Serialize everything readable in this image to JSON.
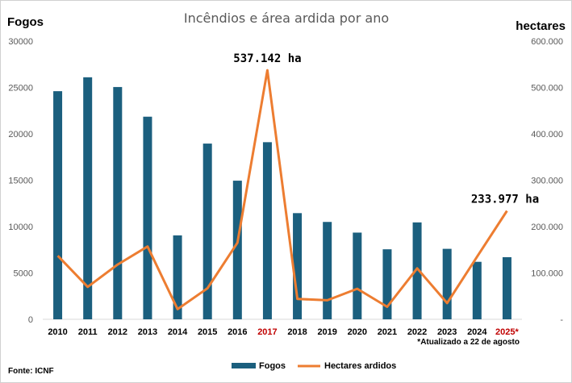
{
  "chart_data": {
    "type": "bar+line",
    "title": "Incêndios e área ardida por ano",
    "y_left_label": "Fogos",
    "y_right_label": "hectares",
    "y_left_ticks": [
      "0",
      "5000",
      "10000",
      "15000",
      "20000",
      "25000",
      "30000"
    ],
    "y_right_ticks": [
      "-",
      "100.000",
      "200.000",
      "300.000",
      "400.000",
      "500.000",
      "600.000"
    ],
    "ylim_left": [
      0,
      30000
    ],
    "ylim_right": [
      0,
      600000
    ],
    "categories": [
      "2010",
      "2011",
      "2012",
      "2013",
      "2014",
      "2015",
      "2016",
      "2017",
      "2018",
      "2019",
      "2020",
      "2021",
      "2022",
      "2023",
      "2024",
      "2025*"
    ],
    "highlight_categories": [
      "2017",
      "2025*"
    ],
    "series": [
      {
        "name": "Fogos",
        "type": "bar",
        "axis": "left",
        "color": "#1b5f7e",
        "values": [
          24600,
          26100,
          25050,
          21850,
          9050,
          18950,
          14950,
          19100,
          11450,
          10500,
          9350,
          7550,
          10450,
          7600,
          6200,
          6700
        ]
      },
      {
        "name": "Hectares ardidos",
        "type": "line",
        "axis": "right",
        "color": "#ed7d31",
        "values": [
          137000,
          70000,
          118000,
          157000,
          22000,
          67000,
          165000,
          537142,
          44000,
          41000,
          66000,
          27000,
          110000,
          35000,
          135000,
          233977
        ]
      }
    ],
    "annotations": [
      {
        "text": "537.142 ha",
        "category": "2017",
        "value": 537142
      },
      {
        "text": "233.977 ha",
        "category": "2025*",
        "value": 233977
      }
    ],
    "note": "*Atualizado a 22 de agosto",
    "source": "Fonte: ICNF",
    "legend": {
      "placement": "bottom",
      "items": [
        "Fogos",
        "Hectares ardidos"
      ]
    },
    "grid": false
  }
}
